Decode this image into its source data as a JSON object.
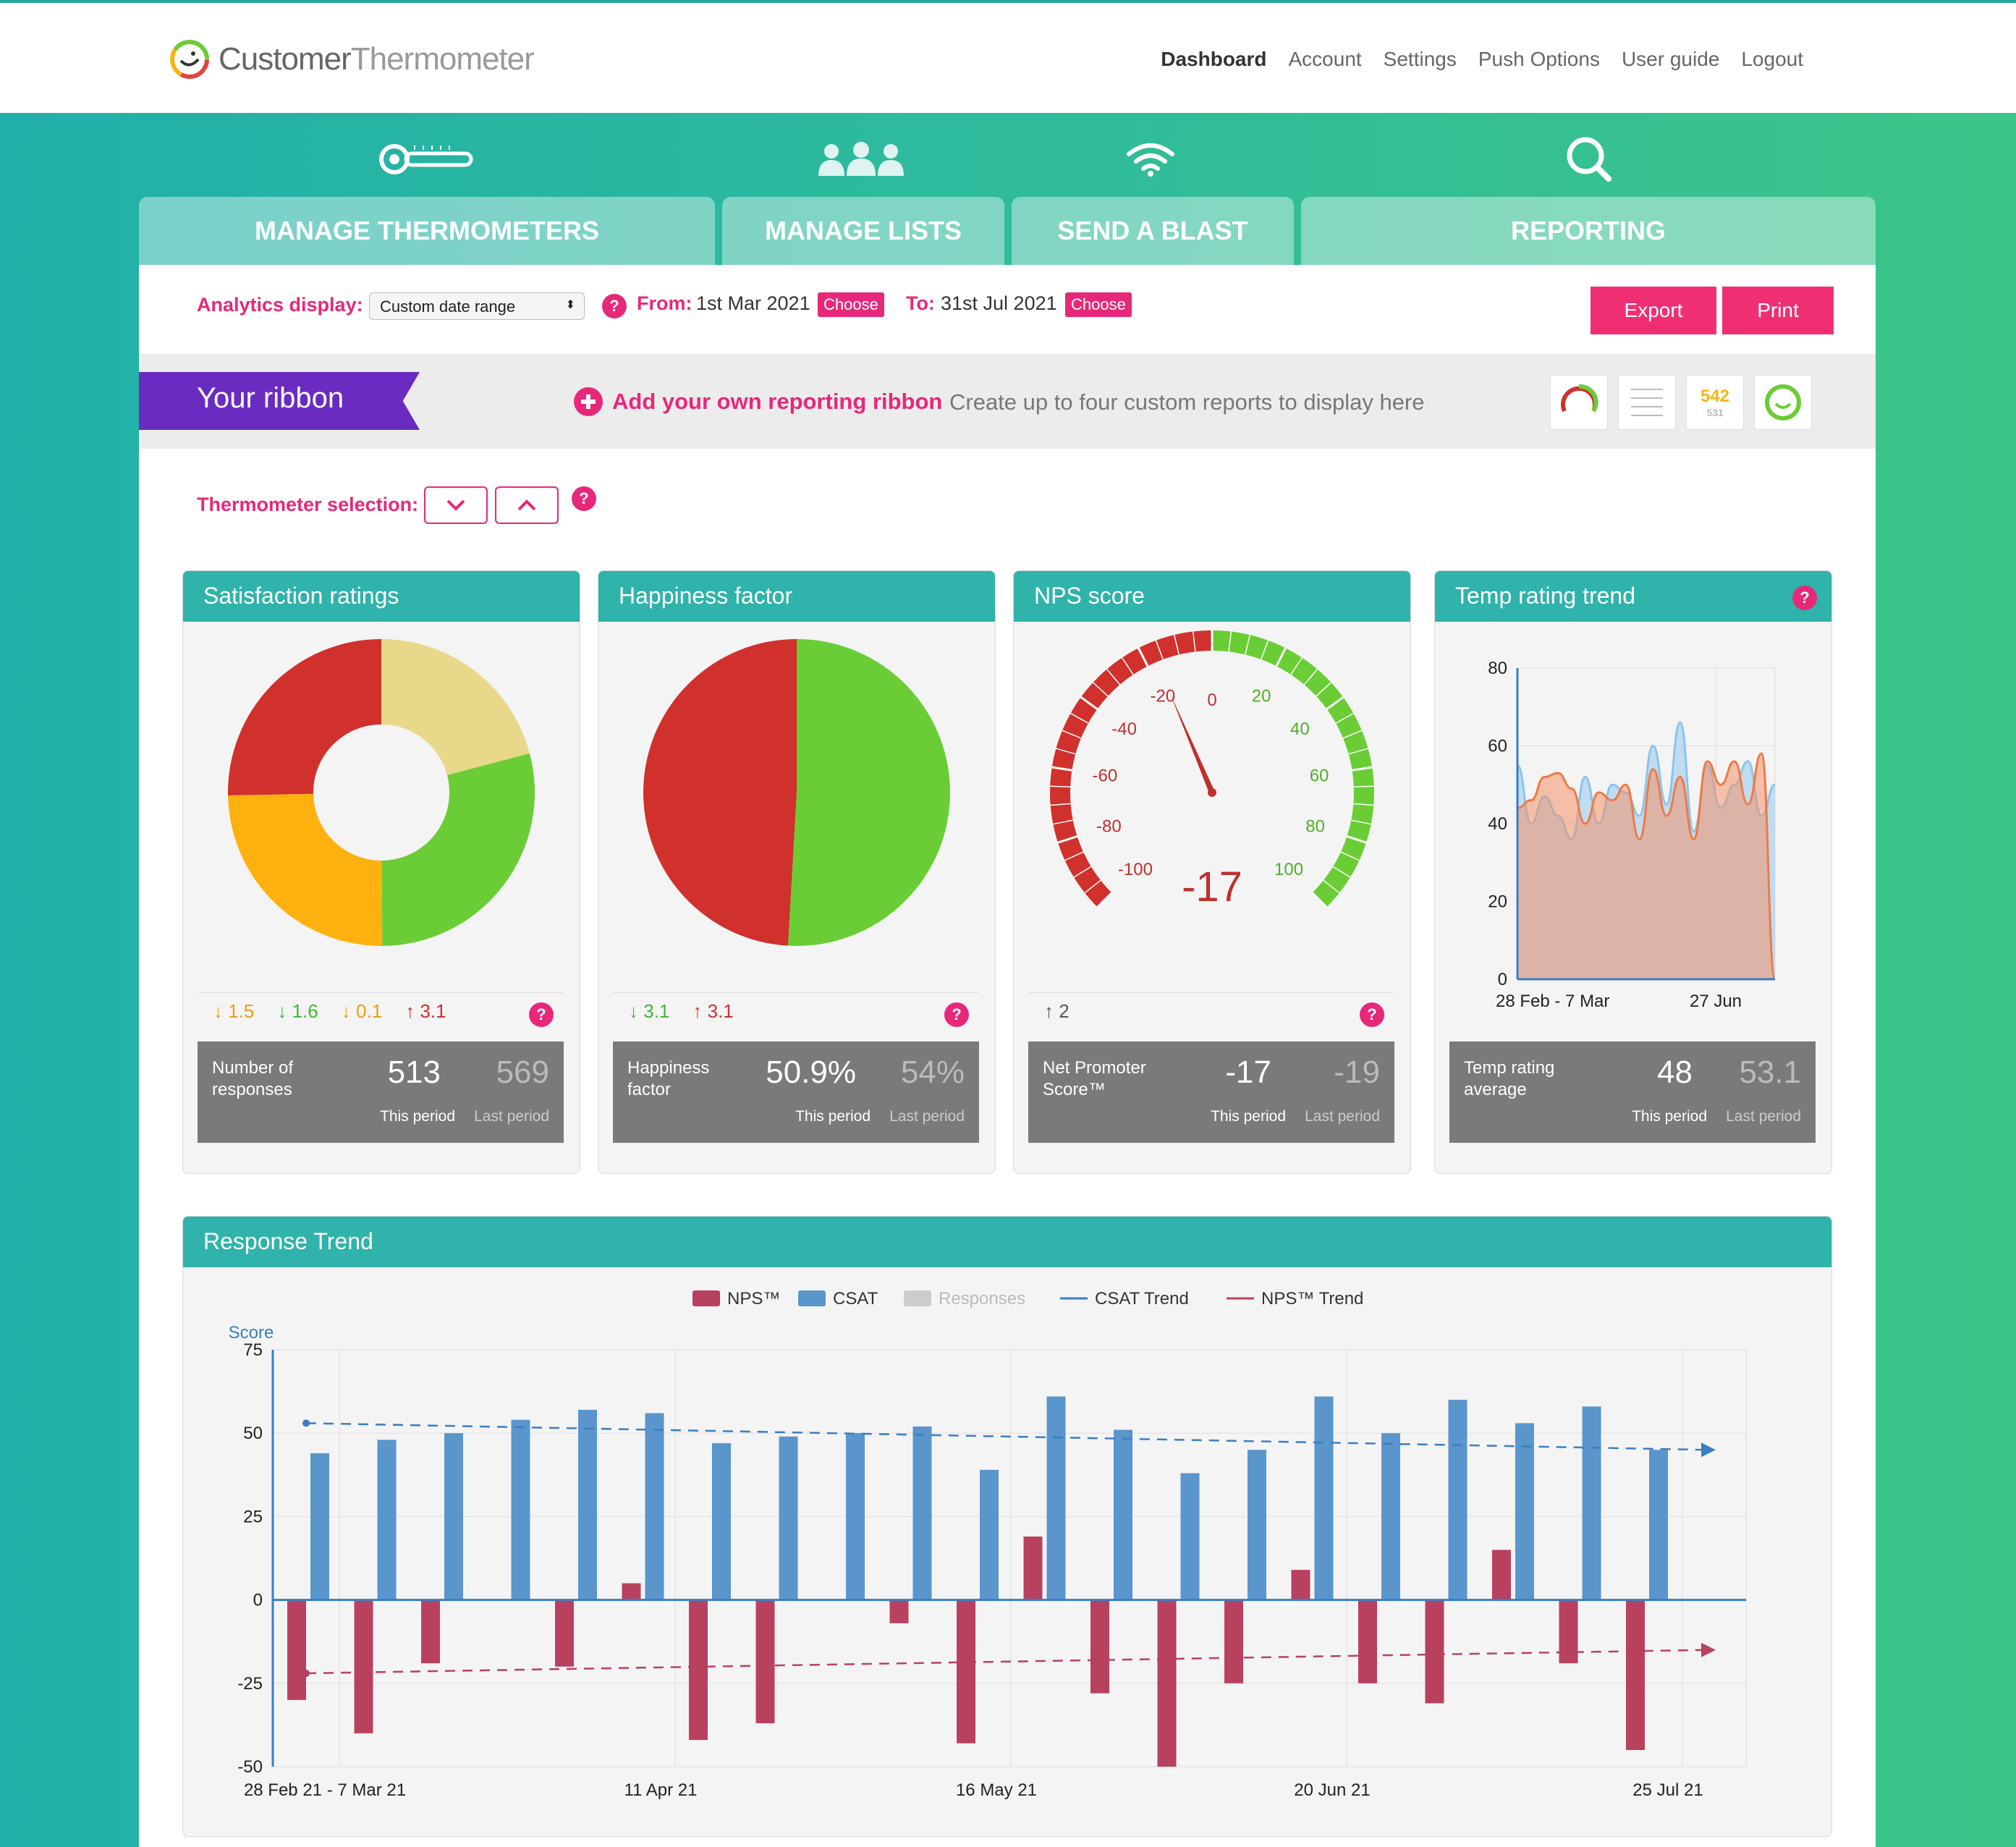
{
  "brand": {
    "name_part1": "Customer",
    "name_part2": "Thermometer"
  },
  "topnav": [
    "Dashboard",
    "Account",
    "Settings",
    "Push Options",
    "User guide",
    "Logout"
  ],
  "tabs": [
    {
      "label": "MANAGE THERMOMETERS",
      "icon": "thermometer-icon"
    },
    {
      "label": "MANAGE LISTS",
      "icon": "users-icon"
    },
    {
      "label": "SEND A BLAST",
      "icon": "wifi-icon"
    },
    {
      "label": "REPORTING",
      "icon": "search-icon"
    }
  ],
  "filters": {
    "analytics_label": "Analytics display:",
    "analytics_value": "Custom date range",
    "from_label": "From:",
    "from_value": "1st Mar 2021",
    "to_label": "To:",
    "to_value": "31st Jul 2021",
    "choose": "Choose",
    "export": "Export",
    "print": "Print",
    "help": "?"
  },
  "ribbon": {
    "title": "Your ribbon",
    "add": "Add your own reporting ribbon",
    "desc": "Create up to four custom reports to display here",
    "thumb_values": [
      "542",
      "531"
    ]
  },
  "selection": {
    "label": "Thermometer selection:"
  },
  "cards": [
    {
      "title": "Satisfaction ratings",
      "deltas": [
        {
          "dir": "down",
          "color": "orange",
          "value": "1.5"
        },
        {
          "dir": "down",
          "color": "green",
          "value": "1.6"
        },
        {
          "dir": "down",
          "color": "orange",
          "value": "0.1"
        },
        {
          "dir": "up",
          "color": "red",
          "value": "3.1"
        }
      ],
      "stat_name": "Number of responses",
      "this_value": "513",
      "last_value": "569",
      "this_label": "This period",
      "last_label": "Last period"
    },
    {
      "title": "Happiness factor",
      "deltas": [
        {
          "dir": "down",
          "color": "green",
          "value": "3.1"
        },
        {
          "dir": "up",
          "color": "red",
          "value": "3.1"
        }
      ],
      "stat_name": "Happiness factor",
      "this_value": "50.9%",
      "last_value": "54%",
      "this_label": "This period",
      "last_label": "Last period"
    },
    {
      "title": "NPS score",
      "deltas": [
        {
          "dir": "up",
          "color": "grey",
          "value": "2"
        }
      ],
      "stat_name": "Net Promoter Score™",
      "this_value": "-17",
      "last_value": "-19",
      "this_label": "This period",
      "last_label": "Last period"
    },
    {
      "title": "Temp rating trend",
      "deltas": [],
      "stat_name": "Temp rating average",
      "this_value": "48",
      "last_value": "53.1",
      "this_label": "This period",
      "last_label": "Last period"
    }
  ],
  "colors": {
    "teal": "#2fb3aa",
    "pink": "#e6287a",
    "purple": "#6a2bc0",
    "red": "#d0312d",
    "green": "#6acd35",
    "yellow": "#ffb10f",
    "nps_bar": "#b8415f",
    "csat_bar": "#5a95cc"
  },
  "chart_data": [
    {
      "type": "pie",
      "title": "Satisfaction ratings",
      "donut": true,
      "slices": [
        {
          "color": "#e9d88a",
          "value": 0.209
        },
        {
          "color": "#6acd35",
          "value": 0.29
        },
        {
          "color": "#ffb10f",
          "value": 0.248
        },
        {
          "color": "#d0312d",
          "value": 0.253
        }
      ]
    },
    {
      "type": "pie",
      "title": "Happiness factor",
      "slices": [
        {
          "color": "#6acd35",
          "value": 0.509
        },
        {
          "color": "#d0312d",
          "value": 0.491
        }
      ]
    },
    {
      "type": "gauge",
      "title": "NPS score",
      "value": -17,
      "min": -100,
      "max": 100,
      "ticks": [
        -100,
        -80,
        -60,
        -40,
        -20,
        0,
        20,
        40,
        60,
        80,
        100
      ]
    },
    {
      "type": "area",
      "title": "Temp rating trend",
      "ylim": [
        0,
        80
      ],
      "yticks": [
        0,
        20,
        40,
        60,
        80
      ],
      "xtick_labels": [
        "28 Feb - 7 Mar",
        "27 Jun"
      ],
      "series": [
        {
          "color": "#a8d1ef",
          "values": [
            55,
            40,
            47,
            42,
            36,
            52,
            40,
            50,
            48,
            42,
            60,
            45,
            66,
            38,
            55,
            44,
            50,
            56,
            42,
            50
          ]
        },
        {
          "color": "#f4926a",
          "values": [
            44,
            46,
            52,
            53,
            49,
            40,
            48,
            46,
            50,
            36,
            54,
            42,
            52,
            36,
            56,
            50,
            56,
            45,
            58,
            0
          ]
        }
      ]
    },
    {
      "type": "bar",
      "title": "Response Trend",
      "ylabel": "Score",
      "ylim": [
        -50,
        75
      ],
      "yticks": [
        75,
        50,
        25,
        0,
        -25,
        -50
      ],
      "x_labels": [
        "28 Feb 21 - 7 Mar 21",
        "11 Apr 21",
        "16 May 21",
        "20 Jun 21",
        "25 Jul 21"
      ],
      "legend": [
        "NPS™",
        "CSAT",
        "Responses",
        "CSAT Trend",
        "NPS™ Trend"
      ],
      "series": [
        {
          "name": "NPS™",
          "values": [
            -30,
            -40,
            -19,
            0,
            -20,
            5,
            -42,
            -37,
            0,
            -7,
            -43,
            19,
            -28,
            -50,
            -25,
            9,
            -25,
            -31,
            15,
            -19,
            -45,
            0
          ]
        },
        {
          "name": "CSAT",
          "values": [
            44,
            48,
            50,
            54,
            57,
            56,
            47,
            49,
            50,
            52,
            39,
            61,
            51,
            38,
            45,
            61,
            50,
            60,
            53,
            58,
            45,
            0
          ]
        }
      ],
      "trends": [
        {
          "name": "CSAT Trend",
          "values": [
            53,
            45
          ]
        },
        {
          "name": "NPS™ Trend",
          "values": [
            -22,
            -15
          ]
        }
      ]
    }
  ],
  "response_trend": {
    "title": "Response Trend"
  }
}
